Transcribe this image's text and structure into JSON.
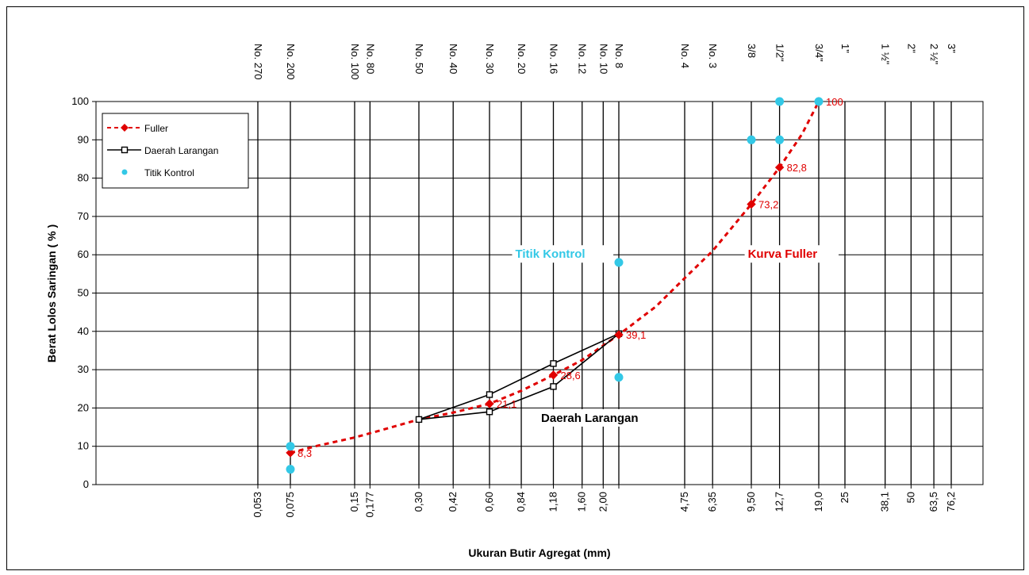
{
  "chart_data": {
    "type": "line",
    "x_scale": "log",
    "ylabel": "Berat Lolos Saringan ( % )",
    "xlabel": "Ukuran Butir Agregat (mm)",
    "ylim": [
      0,
      100
    ],
    "y_ticks": [
      0,
      10,
      20,
      30,
      40,
      50,
      60,
      70,
      80,
      90,
      100
    ],
    "grid": "vertical lines at each sieve; horizontal lines at 10% steps",
    "sieves": [
      {
        "mm": 0.053,
        "tick_label": "0,053",
        "name": "No. 270"
      },
      {
        "mm": 0.075,
        "tick_label": "0,075",
        "name": "No. 200"
      },
      {
        "mm": 0.15,
        "tick_label": "0,15",
        "name": "No. 100"
      },
      {
        "mm": 0.177,
        "tick_label": "0,177",
        "name": "No. 80"
      },
      {
        "mm": 0.3,
        "tick_label": "0,30",
        "name": "No. 50"
      },
      {
        "mm": 0.42,
        "tick_label": "0,42",
        "name": "No. 40"
      },
      {
        "mm": 0.6,
        "tick_label": "0,60",
        "name": "No. 30"
      },
      {
        "mm": 0.84,
        "tick_label": "0,84",
        "name": "No. 20"
      },
      {
        "mm": 1.18,
        "tick_label": "1,18",
        "name": "No. 16"
      },
      {
        "mm": 1.6,
        "tick_label": "1,60",
        "name": "No. 12"
      },
      {
        "mm": 2.0,
        "tick_label": "2,00",
        "name": "No. 10"
      },
      {
        "mm": 2.36,
        "tick_label": "",
        "name": "No. 8"
      },
      {
        "mm": 4.75,
        "tick_label": "4,75",
        "name": "No. 4"
      },
      {
        "mm": 6.35,
        "tick_label": "6,35",
        "name": "No. 3"
      },
      {
        "mm": 9.5,
        "tick_label": "9,50",
        "name": "3/8"
      },
      {
        "mm": 12.7,
        "tick_label": "12,7",
        "name": "1/2\""
      },
      {
        "mm": 19.0,
        "tick_label": "19,0",
        "name": "3/4\""
      },
      {
        "mm": 25,
        "tick_label": "25",
        "name": "1\""
      },
      {
        "mm": 38.1,
        "tick_label": "38,1",
        "name": "1 ½\""
      },
      {
        "mm": 50,
        "tick_label": "50",
        "name": "2\""
      },
      {
        "mm": 63.5,
        "tick_label": "63,5",
        "name": "2 ½\""
      },
      {
        "mm": 76.2,
        "tick_label": "76,2",
        "name": "3\""
      }
    ],
    "series": [
      {
        "name": "Fuller",
        "color": "#e00000",
        "style": "dashed line with diamond markers",
        "points": [
          {
            "x": 0.075,
            "y": 8.3,
            "label": "8,3"
          },
          {
            "x": 0.6,
            "y": 21.1,
            "label": "21,1"
          },
          {
            "x": 1.18,
            "y": 28.6,
            "label": "28,6"
          },
          {
            "x": 2.36,
            "y": 39.1,
            "label": "39,1"
          },
          {
            "x": 9.5,
            "y": 73.2,
            "label": "73,2"
          },
          {
            "x": 12.7,
            "y": 82.8,
            "label": "82,8"
          },
          {
            "x": 19.0,
            "y": 100,
            "label": "100"
          }
        ],
        "curve": [
          {
            "x": 0.075,
            "y": 8.3
          },
          {
            "x": 0.1,
            "y": 10.1
          },
          {
            "x": 0.15,
            "y": 12.3
          },
          {
            "x": 0.2,
            "y": 14.2
          },
          {
            "x": 0.3,
            "y": 17.0
          },
          {
            "x": 0.42,
            "y": 18.8
          },
          {
            "x": 0.6,
            "y": 21.1
          },
          {
            "x": 0.84,
            "y": 24.5
          },
          {
            "x": 1.18,
            "y": 28.6
          },
          {
            "x": 1.6,
            "y": 32.5
          },
          {
            "x": 2.36,
            "y": 39.1
          },
          {
            "x": 3.5,
            "y": 46.5
          },
          {
            "x": 4.75,
            "y": 53.9
          },
          {
            "x": 6.35,
            "y": 61.0
          },
          {
            "x": 9.5,
            "y": 73.2
          },
          {
            "x": 12.7,
            "y": 82.8
          },
          {
            "x": 16,
            "y": 91.5
          },
          {
            "x": 19.0,
            "y": 100
          }
        ]
      },
      {
        "name": "Daerah Larangan",
        "color": "#000000",
        "style": "solid line with open square markers",
        "points": [
          {
            "x": 0.3,
            "y": 17.0
          },
          {
            "x": 0.6,
            "y": 23.5
          },
          {
            "x": 1.18,
            "y": 31.6
          },
          {
            "x": 2.36,
            "y": 39.4
          },
          {
            "x": 1.18,
            "y": 25.6
          },
          {
            "x": 0.6,
            "y": 19.0
          },
          {
            "x": 0.3,
            "y": 17.0
          }
        ]
      },
      {
        "name": "Titik Kontrol",
        "color": "#33c8e6",
        "style": "circle markers",
        "points": [
          {
            "x": 0.075,
            "y": 10
          },
          {
            "x": 0.075,
            "y": 4
          },
          {
            "x": 2.36,
            "y": 58
          },
          {
            "x": 2.36,
            "y": 28
          },
          {
            "x": 9.5,
            "y": 90
          },
          {
            "x": 12.7,
            "y": 90
          },
          {
            "x": 12.7,
            "y": 100
          },
          {
            "x": 19.0,
            "y": 100
          }
        ]
      }
    ],
    "annotations": [
      {
        "text": "Titik Kontrol",
        "color": "#33c8e6",
        "x": 1.18,
        "y": 60
      },
      {
        "text": "Kurva Fuller",
        "color": "#e00000",
        "x": 12.7,
        "y": 60
      },
      {
        "text": "Daerah Larangan",
        "color": "#000000",
        "x": 1.45,
        "y": 17
      }
    ],
    "legend": {
      "position": "top-left",
      "entries": [
        "Fuller",
        "Daerah Larangan",
        "Titik Kontrol"
      ]
    }
  }
}
